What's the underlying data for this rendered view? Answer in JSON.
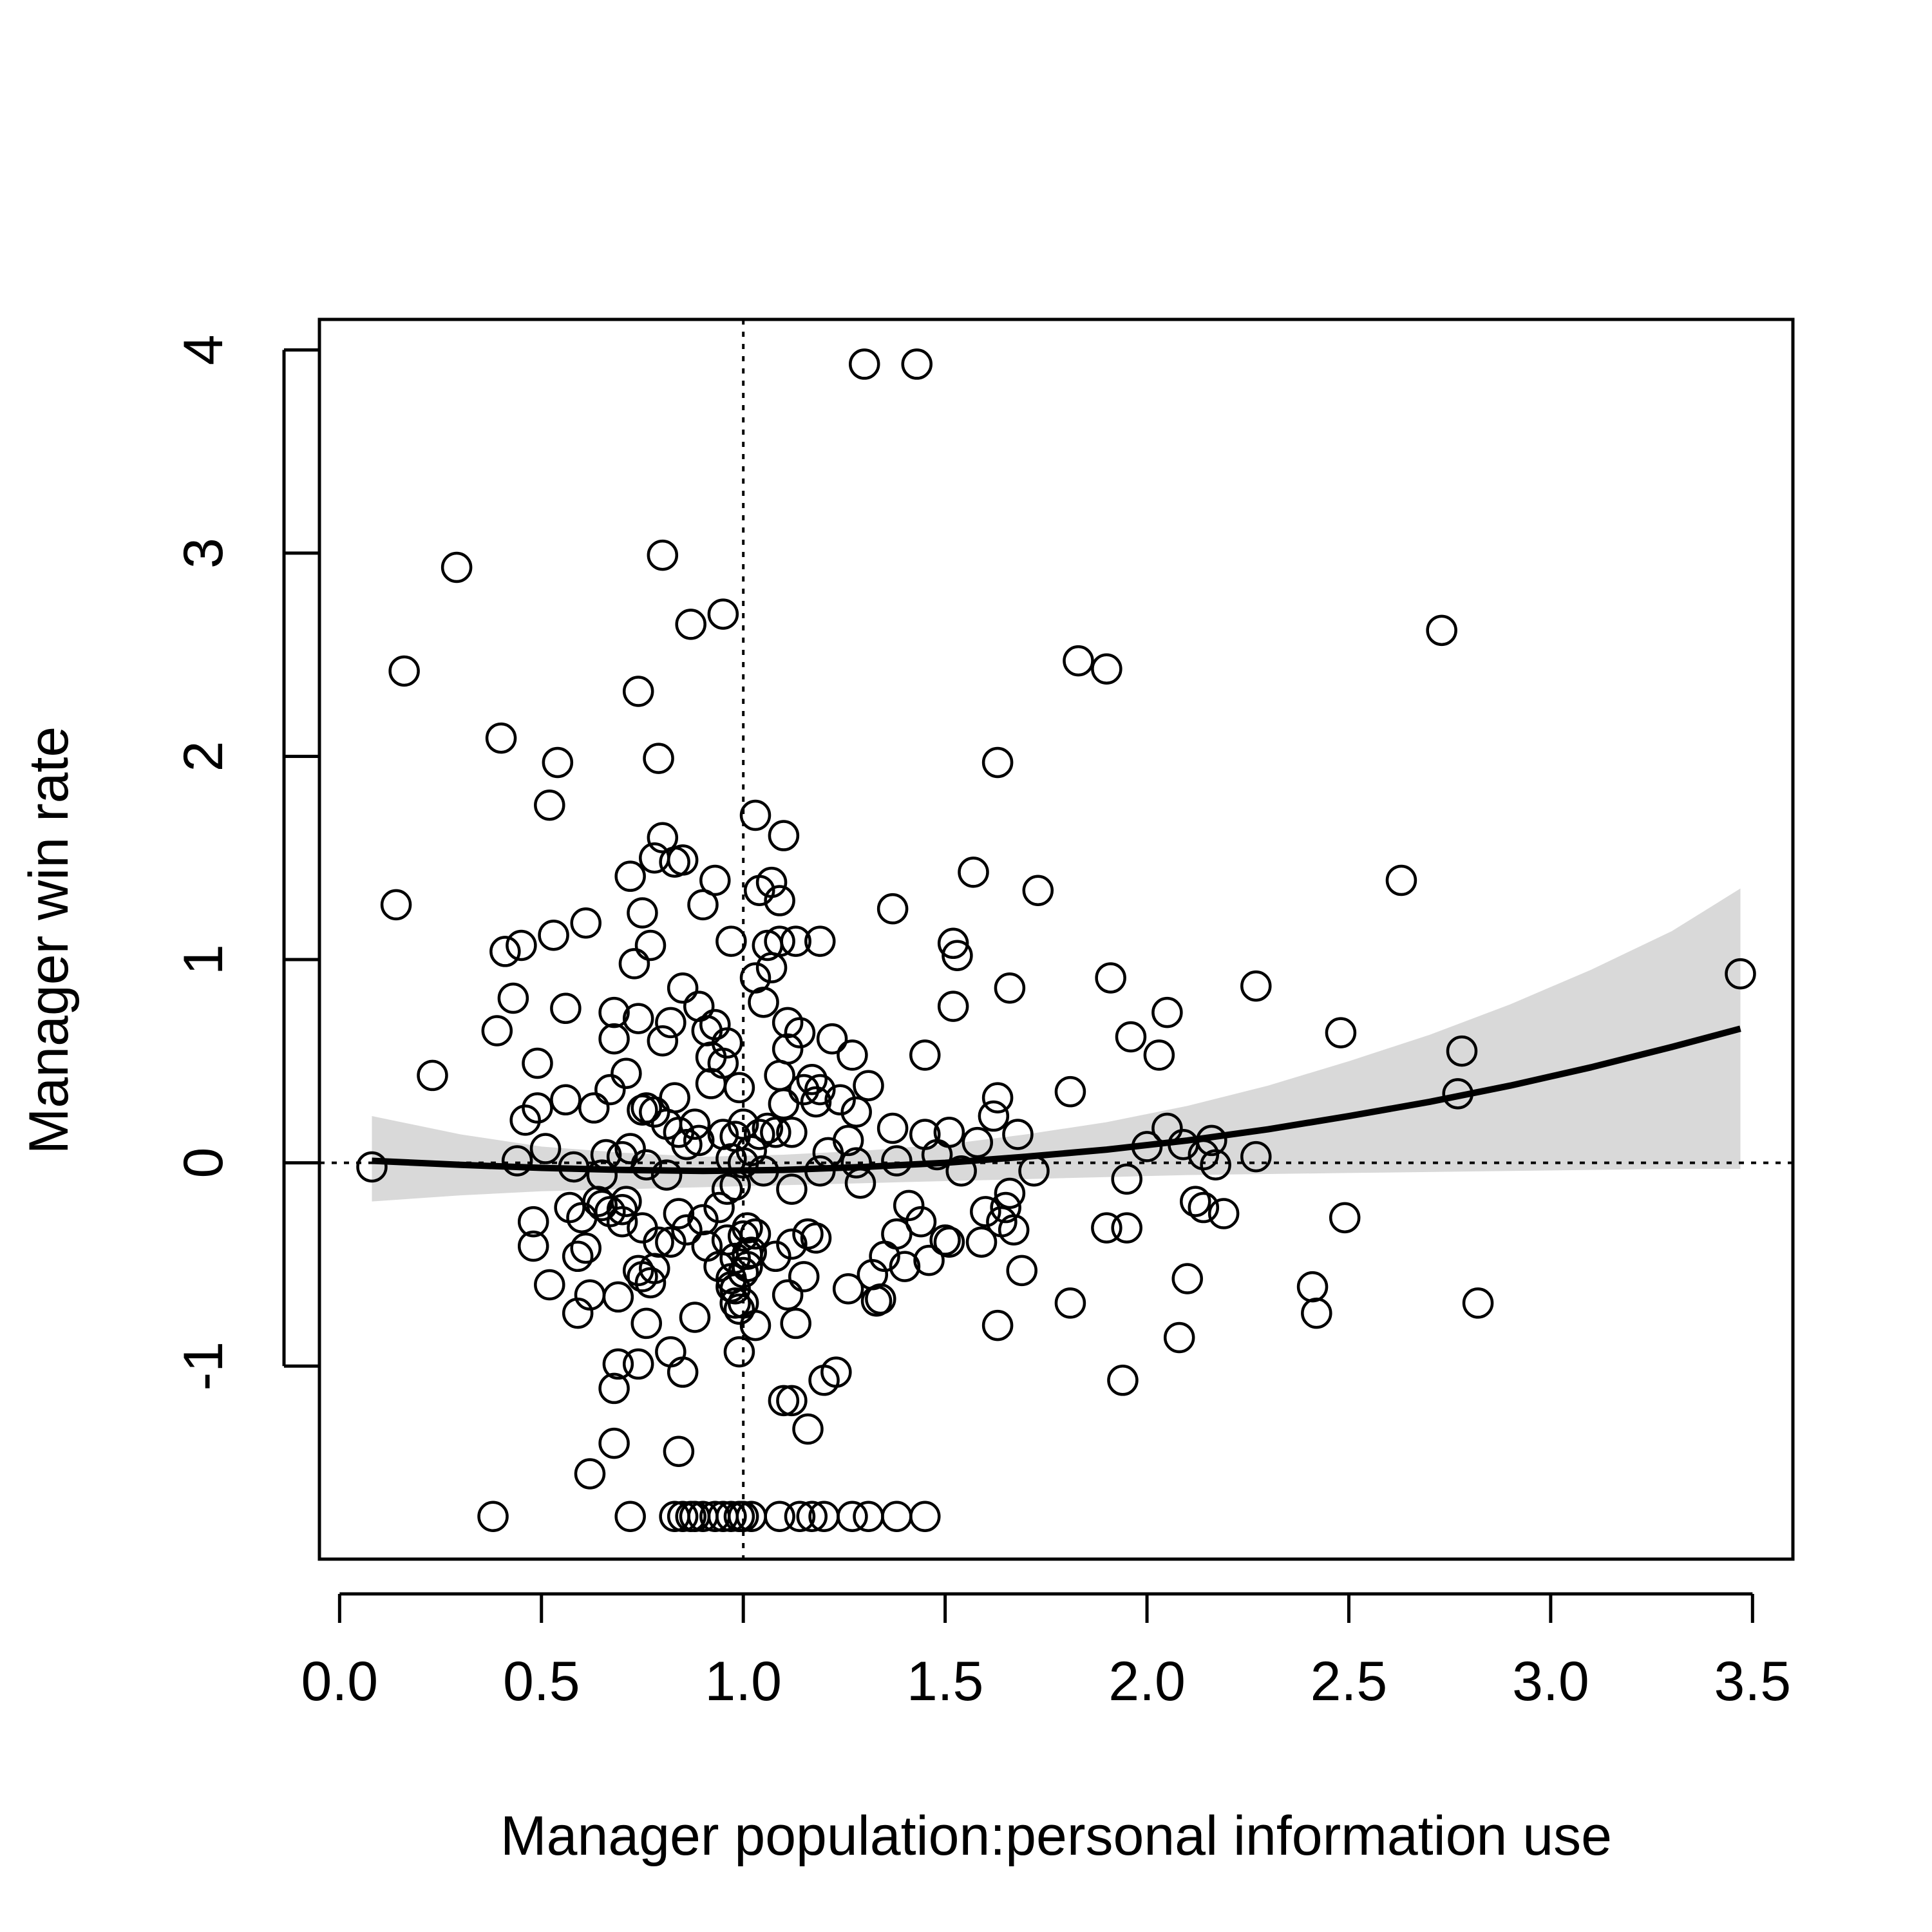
{
  "chart_data": {
    "type": "scatter",
    "title": "",
    "xlabel": "Manager population:personal information use",
    "ylabel": "Manager win rate",
    "xlim": [
      -0.05,
      3.6
    ],
    "ylim": [
      -1.95,
      4.15
    ],
    "x_ticks": [
      "0.0",
      "0.5",
      "1.0",
      "1.5",
      "2.0",
      "2.5",
      "3.0",
      "3.5"
    ],
    "y_ticks": [
      "-1",
      "0",
      "1",
      "2",
      "3",
      "4"
    ],
    "grid": false,
    "legend": "none",
    "reference_lines": {
      "horizontal_y": 0,
      "vertical_x": 1.0,
      "style": "dotted"
    },
    "fit": {
      "type": "line",
      "x": [
        0.08,
        0.3,
        0.5,
        0.7,
        0.9,
        1.1,
        1.3,
        1.5,
        1.7,
        1.9,
        2.1,
        2.3,
        2.5,
        2.7,
        2.9,
        3.1,
        3.3,
        3.47
      ],
      "y": [
        0.01,
        -0.01,
        -0.025,
        -0.035,
        -0.04,
        -0.035,
        -0.02,
        0.0,
        0.03,
        0.065,
        0.11,
        0.165,
        0.23,
        0.3,
        0.38,
        0.47,
        0.57,
        0.66
      ],
      "lower": [
        -0.19,
        -0.16,
        -0.14,
        -0.13,
        -0.12,
        -0.11,
        -0.1,
        -0.09,
        -0.08,
        -0.07,
        -0.06,
        -0.055,
        -0.05,
        -0.045,
        -0.04,
        -0.035,
        -0.03,
        -0.03
      ],
      "upper": [
        0.23,
        0.14,
        0.08,
        0.05,
        0.03,
        0.04,
        0.06,
        0.09,
        0.14,
        0.2,
        0.28,
        0.38,
        0.5,
        0.63,
        0.78,
        0.95,
        1.14,
        1.35
      ]
    },
    "points": [
      [
        0.08,
        -0.02
      ],
      [
        0.14,
        1.27
      ],
      [
        0.16,
        2.42
      ],
      [
        0.23,
        0.43
      ],
      [
        0.29,
        2.93
      ],
      [
        0.38,
        -1.74
      ],
      [
        0.39,
        0.65
      ],
      [
        0.4,
        2.09
      ],
      [
        0.41,
        1.04
      ],
      [
        0.43,
        0.81
      ],
      [
        0.44,
        0.01
      ],
      [
        0.45,
        1.07
      ],
      [
        0.46,
        0.21
      ],
      [
        0.48,
        -0.29
      ],
      [
        0.48,
        -0.41
      ],
      [
        0.49,
        0.27
      ],
      [
        0.49,
        0.49
      ],
      [
        0.51,
        0.07
      ],
      [
        0.52,
        1.76
      ],
      [
        0.52,
        -0.6
      ],
      [
        0.53,
        1.12
      ],
      [
        0.54,
        1.97
      ],
      [
        0.56,
        0.76
      ],
      [
        0.56,
        0.31
      ],
      [
        0.57,
        -0.22
      ],
      [
        0.58,
        -0.02
      ],
      [
        0.59,
        -0.46
      ],
      [
        0.59,
        -0.74
      ],
      [
        0.6,
        -0.27
      ],
      [
        0.61,
        1.18
      ],
      [
        0.61,
        -0.42
      ],
      [
        0.62,
        -1.53
      ],
      [
        0.62,
        -0.65
      ],
      [
        0.63,
        0.27
      ],
      [
        0.64,
        -0.19
      ],
      [
        0.65,
        -0.06
      ],
      [
        0.65,
        -0.21
      ],
      [
        0.66,
        0.04
      ],
      [
        0.67,
        -0.24
      ],
      [
        0.67,
        0.36
      ],
      [
        0.68,
        0.74
      ],
      [
        0.68,
        0.61
      ],
      [
        0.68,
        -1.38
      ],
      [
        0.68,
        -1.11
      ],
      [
        0.69,
        -0.99
      ],
      [
        0.69,
        -0.66
      ],
      [
        0.7,
        -0.23
      ],
      [
        0.7,
        -0.29
      ],
      [
        0.7,
        0.03
      ],
      [
        0.71,
        -0.19
      ],
      [
        0.71,
        0.44
      ],
      [
        0.72,
        0.07
      ],
      [
        0.72,
        1.41
      ],
      [
        0.72,
        -1.74
      ],
      [
        0.73,
        0.98
      ],
      [
        0.74,
        -0.99
      ],
      [
        0.74,
        -0.53
      ],
      [
        0.74,
        0.71
      ],
      [
        0.74,
        2.32
      ],
      [
        0.75,
        1.23
      ],
      [
        0.75,
        -0.56
      ],
      [
        0.75,
        0.26
      ],
      [
        0.75,
        -0.32
      ],
      [
        0.76,
        -0.79
      ],
      [
        0.76,
        -0.01
      ],
      [
        0.76,
        0.27
      ],
      [
        0.77,
        1.07
      ],
      [
        0.77,
        -0.59
      ],
      [
        0.78,
        0.25
      ],
      [
        0.78,
        -0.52
      ],
      [
        0.78,
        1.5
      ],
      [
        0.79,
        1.99
      ],
      [
        0.79,
        -0.39
      ],
      [
        0.8,
        0.6
      ],
      [
        0.8,
        2.99
      ],
      [
        0.8,
        1.6
      ],
      [
        0.81,
        0.19
      ],
      [
        0.81,
        -0.06
      ],
      [
        0.82,
        0.69
      ],
      [
        0.82,
        -0.93
      ],
      [
        0.82,
        -0.39
      ],
      [
        0.83,
        0.32
      ],
      [
        0.83,
        1.48
      ],
      [
        0.83,
        -1.74
      ],
      [
        0.84,
        -1.42
      ],
      [
        0.84,
        -0.25
      ],
      [
        0.84,
        0.15
      ],
      [
        0.85,
        -1.03
      ],
      [
        0.85,
        0.86
      ],
      [
        0.85,
        1.49
      ],
      [
        0.85,
        -1.74
      ],
      [
        0.86,
        0.09
      ],
      [
        0.86,
        -0.33
      ],
      [
        0.87,
        2.65
      ],
      [
        0.87,
        -1.74
      ],
      [
        0.88,
        0.19
      ],
      [
        0.88,
        -0.76
      ],
      [
        0.88,
        -1.74
      ],
      [
        0.89,
        0.77
      ],
      [
        0.89,
        0.11
      ],
      [
        0.9,
        -0.28
      ],
      [
        0.9,
        1.27
      ],
      [
        0.9,
        -1.74
      ],
      [
        0.91,
        0.65
      ],
      [
        0.91,
        -0.41
      ],
      [
        0.92,
        0.52
      ],
      [
        0.92,
        0.39
      ],
      [
        0.93,
        1.39
      ],
      [
        0.93,
        0.68
      ],
      [
        0.93,
        -1.74
      ],
      [
        0.94,
        -0.22
      ],
      [
        0.94,
        -0.51
      ],
      [
        0.95,
        0.14
      ],
      [
        0.95,
        2.7
      ],
      [
        0.95,
        0.49
      ],
      [
        0.95,
        -1.74
      ],
      [
        0.96,
        -0.38
      ],
      [
        0.96,
        0.59
      ],
      [
        0.96,
        -0.13
      ],
      [
        0.97,
        -0.57
      ],
      [
        0.97,
        -0.61
      ],
      [
        0.97,
        0.02
      ],
      [
        0.97,
        1.09
      ],
      [
        0.97,
        -1.74
      ],
      [
        0.98,
        -0.69
      ],
      [
        0.98,
        -0.47
      ],
      [
        0.98,
        -0.11
      ],
      [
        0.98,
        0.13
      ],
      [
        0.98,
        -0.62
      ],
      [
        0.99,
        -0.93
      ],
      [
        0.99,
        0.37
      ],
      [
        0.99,
        -0.72
      ],
      [
        0.99,
        -1.74
      ],
      [
        1.0,
        0.0
      ],
      [
        1.0,
        -0.36
      ],
      [
        1.0,
        0.19
      ],
      [
        1.0,
        -0.54
      ],
      [
        1.0,
        -0.69
      ],
      [
        1.0,
        -1.74
      ],
      [
        1.01,
        -0.45
      ],
      [
        1.01,
        -0.51
      ],
      [
        1.01,
        -0.32
      ],
      [
        1.02,
        -0.44
      ],
      [
        1.02,
        0.06
      ],
      [
        1.02,
        -1.74
      ],
      [
        1.03,
        1.71
      ],
      [
        1.03,
        0.91
      ],
      [
        1.03,
        -0.8
      ],
      [
        1.03,
        -0.35
      ],
      [
        1.04,
        1.34
      ],
      [
        1.04,
        0.14
      ],
      [
        1.05,
        0.79
      ],
      [
        1.05,
        -0.04
      ],
      [
        1.06,
        0.17
      ],
      [
        1.06,
        1.07
      ],
      [
        1.07,
        0.96
      ],
      [
        1.07,
        1.38
      ],
      [
        1.08,
        0.15
      ],
      [
        1.08,
        -0.46
      ],
      [
        1.09,
        0.43
      ],
      [
        1.09,
        1.09
      ],
      [
        1.09,
        1.29
      ],
      [
        1.09,
        -1.74
      ],
      [
        1.1,
        0.29
      ],
      [
        1.1,
        1.61
      ],
      [
        1.1,
        -1.17
      ],
      [
        1.11,
        0.56
      ],
      [
        1.11,
        0.69
      ],
      [
        1.11,
        -0.65
      ],
      [
        1.12,
        0.15
      ],
      [
        1.12,
        -0.4
      ],
      [
        1.12,
        -0.13
      ],
      [
        1.12,
        -1.17
      ],
      [
        1.13,
        1.09
      ],
      [
        1.13,
        -0.79
      ],
      [
        1.14,
        0.64
      ],
      [
        1.14,
        -1.74
      ],
      [
        1.15,
        0.36
      ],
      [
        1.15,
        -0.56
      ],
      [
        1.16,
        -0.35
      ],
      [
        1.16,
        -1.31
      ],
      [
        1.17,
        0.41
      ],
      [
        1.17,
        -1.74
      ],
      [
        1.18,
        0.3
      ],
      [
        1.18,
        -0.37
      ],
      [
        1.19,
        1.09
      ],
      [
        1.19,
        0.36
      ],
      [
        1.19,
        -0.04
      ],
      [
        1.2,
        -1.07
      ],
      [
        1.2,
        -1.74
      ],
      [
        1.21,
        0.05
      ],
      [
        1.22,
        0.61
      ],
      [
        1.23,
        -1.03
      ],
      [
        1.24,
        0.31
      ],
      [
        1.26,
        -0.62
      ],
      [
        1.26,
        0.11
      ],
      [
        1.27,
        0.53
      ],
      [
        1.27,
        -1.74
      ],
      [
        1.28,
        0.0
      ],
      [
        1.28,
        0.25
      ],
      [
        1.29,
        -0.1
      ],
      [
        1.3,
        3.93
      ],
      [
        1.31,
        0.38
      ],
      [
        1.31,
        -1.74
      ],
      [
        1.32,
        -0.55
      ],
      [
        1.33,
        -0.68
      ],
      [
        1.34,
        -0.67
      ],
      [
        1.35,
        -0.46
      ],
      [
        1.37,
        1.25
      ],
      [
        1.37,
        0.17
      ],
      [
        1.38,
        -0.35
      ],
      [
        1.38,
        0.01
      ],
      [
        1.38,
        -1.74
      ],
      [
        1.4,
        -0.51
      ],
      [
        1.41,
        -0.21
      ],
      [
        1.43,
        3.93
      ],
      [
        1.44,
        -0.29
      ],
      [
        1.45,
        0.53
      ],
      [
        1.45,
        0.14
      ],
      [
        1.45,
        -1.74
      ],
      [
        1.46,
        -0.48
      ],
      [
        1.48,
        0.04
      ],
      [
        1.5,
        -0.38
      ],
      [
        1.51,
        0.15
      ],
      [
        1.51,
        -0.39
      ],
      [
        1.52,
        1.08
      ],
      [
        1.52,
        0.77
      ],
      [
        1.53,
        1.02
      ],
      [
        1.54,
        -0.04
      ],
      [
        1.57,
        1.43
      ],
      [
        1.58,
        0.1
      ],
      [
        1.59,
        -0.39
      ],
      [
        1.6,
        -0.24
      ],
      [
        1.62,
        0.23
      ],
      [
        1.63,
        -0.8
      ],
      [
        1.63,
        1.97
      ],
      [
        1.63,
        0.32
      ],
      [
        1.64,
        -0.29
      ],
      [
        1.65,
        -0.22
      ],
      [
        1.66,
        -0.15
      ],
      [
        1.66,
        0.86
      ],
      [
        1.67,
        -0.33
      ],
      [
        1.68,
        0.14
      ],
      [
        1.69,
        -0.53
      ],
      [
        1.72,
        -0.04
      ],
      [
        1.73,
        1.34
      ],
      [
        1.81,
        0.35
      ],
      [
        1.81,
        -0.69
      ],
      [
        1.83,
        2.47
      ],
      [
        1.9,
        -0.32
      ],
      [
        1.9,
        2.43
      ],
      [
        1.91,
        0.91
      ],
      [
        1.94,
        -1.07
      ],
      [
        1.95,
        -0.32
      ],
      [
        1.95,
        -0.08
      ],
      [
        1.96,
        0.62
      ],
      [
        2.0,
        0.08
      ],
      [
        2.03,
        0.53
      ],
      [
        2.05,
        0.74
      ],
      [
        2.05,
        0.17
      ],
      [
        2.08,
        -0.86
      ],
      [
        2.09,
        0.09
      ],
      [
        2.1,
        -0.57
      ],
      [
        2.12,
        -0.19
      ],
      [
        2.14,
        0.04
      ],
      [
        2.14,
        -0.22
      ],
      [
        2.16,
        0.11
      ],
      [
        2.17,
        -0.01
      ],
      [
        2.19,
        -0.25
      ],
      [
        2.27,
        0.87
      ],
      [
        2.27,
        0.03
      ],
      [
        2.41,
        -0.61
      ],
      [
        2.42,
        -0.74
      ],
      [
        2.48,
        0.64
      ],
      [
        2.49,
        -0.27
      ],
      [
        2.63,
        1.39
      ],
      [
        2.73,
        2.62
      ],
      [
        2.77,
        0.34
      ],
      [
        2.78,
        0.55
      ],
      [
        2.82,
        -0.69
      ],
      [
        3.47,
        0.93
      ]
    ]
  }
}
